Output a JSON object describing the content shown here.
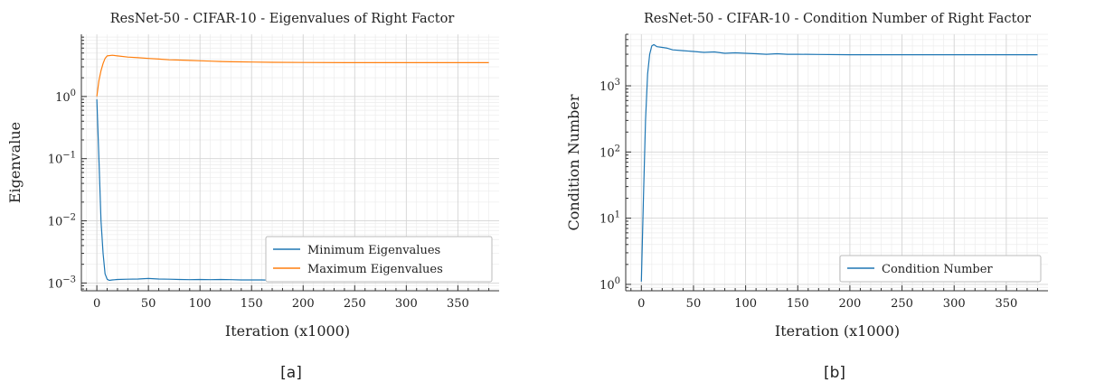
{
  "chart_data": [
    {
      "type": "line",
      "title": "ResNet-50 - CIFAR-10 - Eigenvalues of Right Factor",
      "xlabel": "Iteration (x1000)",
      "ylabel": "Eigenvalue",
      "yscale": "log",
      "xlim": [
        -15,
        390
      ],
      "ylim": [
        0.00075,
        10
      ],
      "xticks": [
        0,
        50,
        100,
        150,
        200,
        250,
        300,
        350
      ],
      "yticks": [
        0.001,
        0.01,
        0.1,
        1
      ],
      "ytick_labels": [
        "10^-3",
        "10^-2",
        "10^-1",
        "10^0"
      ],
      "grid": true,
      "legend_position": "lower-right",
      "caption": "[a]",
      "series": [
        {
          "name": "Minimum Eigenvalues",
          "color": "#1f77b4",
          "x": [
            0,
            2,
            4,
            6,
            8,
            10,
            12,
            15,
            20,
            30,
            40,
            50,
            60,
            70,
            80,
            90,
            100,
            110,
            120,
            130,
            140,
            150,
            160,
            170,
            180,
            190,
            200,
            250,
            300,
            350,
            380
          ],
          "y": [
            0.9,
            0.1,
            0.01,
            0.003,
            0.0014,
            0.00115,
            0.0011,
            0.00112,
            0.00114,
            0.00115,
            0.00116,
            0.00118,
            0.00116,
            0.00115,
            0.00114,
            0.00113,
            0.00114,
            0.00113,
            0.00114,
            0.00113,
            0.00112,
            0.00112,
            0.00112,
            0.00111,
            0.00111,
            0.00111,
            0.00111,
            0.0011,
            0.0011,
            0.0011,
            0.0011
          ]
        },
        {
          "name": "Maximum Eigenvalues",
          "color": "#ff7f0e",
          "x": [
            0,
            2,
            4,
            6,
            8,
            10,
            15,
            20,
            30,
            40,
            50,
            60,
            70,
            80,
            90,
            100,
            110,
            120,
            130,
            140,
            150,
            170,
            200,
            250,
            300,
            350,
            380
          ],
          "y": [
            1.0,
            1.8,
            2.6,
            3.4,
            4.1,
            4.5,
            4.6,
            4.5,
            4.3,
            4.2,
            4.1,
            4.0,
            3.9,
            3.85,
            3.8,
            3.75,
            3.7,
            3.65,
            3.62,
            3.6,
            3.58,
            3.55,
            3.52,
            3.5,
            3.5,
            3.5,
            3.5
          ]
        }
      ]
    },
    {
      "type": "line",
      "title": "ResNet-50 - CIFAR-10 - Condition Number of Right Factor",
      "xlabel": "Iteration (x1000)",
      "ylabel": "Condition Number",
      "yscale": "log",
      "xlim": [
        -15,
        390
      ],
      "ylim": [
        0.8,
        6000
      ],
      "xticks": [
        0,
        50,
        100,
        150,
        200,
        250,
        300,
        350
      ],
      "yticks": [
        1,
        10,
        100,
        1000
      ],
      "ytick_labels": [
        "10^0",
        "10^1",
        "10^2",
        "10^3"
      ],
      "grid": true,
      "legend_position": "lower-right",
      "caption": "[b]",
      "series": [
        {
          "name": "Condition Number",
          "color": "#1f77b4",
          "x": [
            0,
            2,
            4,
            6,
            8,
            10,
            12,
            15,
            20,
            25,
            30,
            40,
            50,
            60,
            70,
            80,
            90,
            100,
            110,
            120,
            130,
            140,
            150,
            170,
            200,
            250,
            300,
            350,
            380
          ],
          "y": [
            1.1,
            20,
            300,
            1500,
            3000,
            4000,
            4200,
            3900,
            3800,
            3700,
            3500,
            3400,
            3300,
            3200,
            3250,
            3100,
            3150,
            3100,
            3050,
            3000,
            3050,
            3000,
            3000,
            2980,
            2950,
            2950,
            2950,
            2950,
            2950
          ]
        }
      ]
    }
  ]
}
